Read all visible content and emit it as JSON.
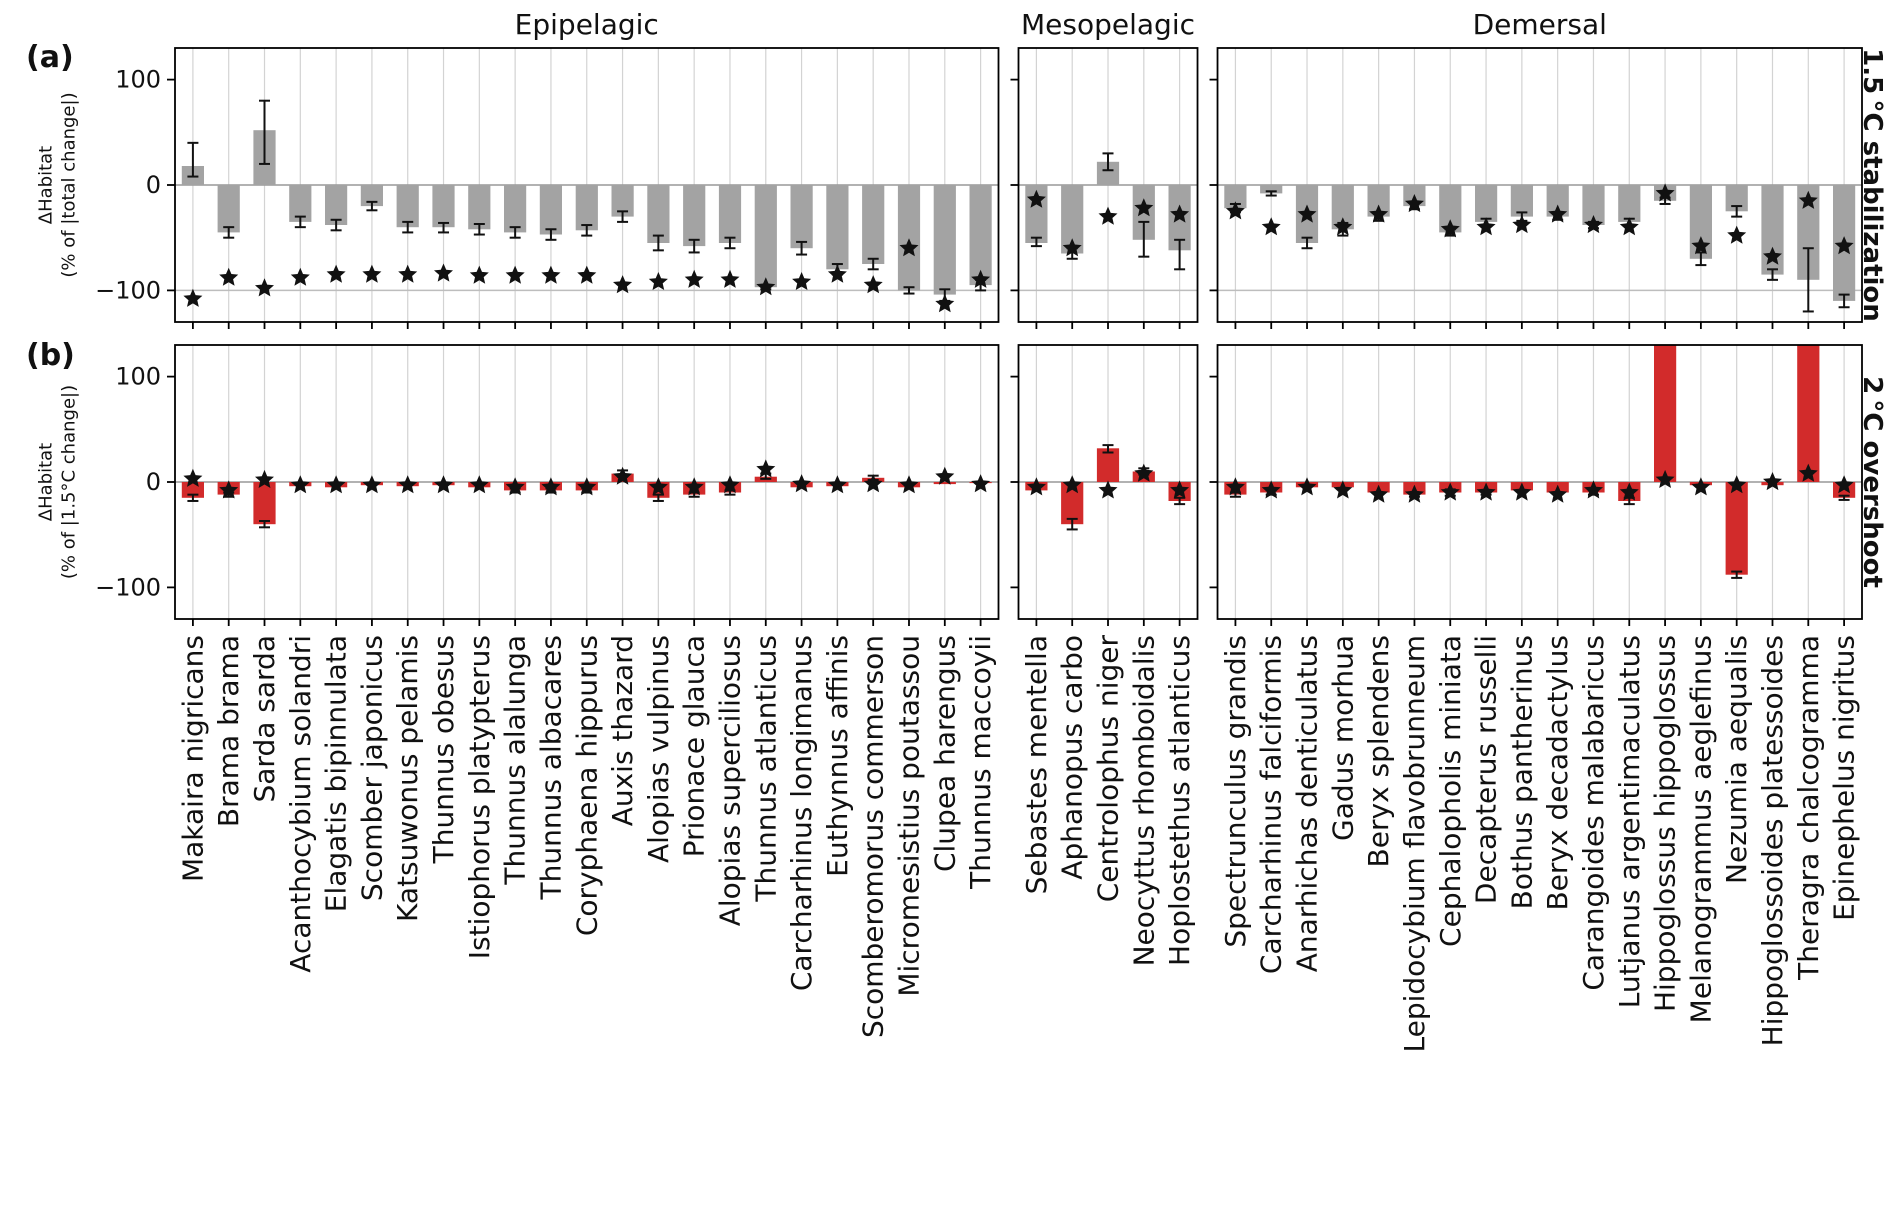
{
  "chart_data": {
    "type": "bar",
    "ylim": [
      -130,
      130
    ],
    "yticks": [
      100,
      0,
      -100
    ],
    "hlines": {
      "a": [
        0,
        -100
      ],
      "b": [
        0
      ]
    },
    "colors": {
      "a_bar": "#a3a3a3",
      "b_bar": "#d22b2b",
      "marker": "#111111",
      "gridline": "#d3d3d3",
      "zero_line": "#999999",
      "ref_line": "#bdbdbd"
    },
    "panels": [
      {
        "id": "a",
        "letter": "(a)",
        "ylabel_line1": "ΔHabitat",
        "ylabel_line2": "(% of |total change|)",
        "right_label": "1.5 °C stabilization"
      },
      {
        "id": "b",
        "letter": "(b)",
        "ylabel_line1": "ΔHabitat",
        "ylabel_line2": "(% of |1.5°C change|)",
        "right_label": "2 °C overshoot"
      }
    ],
    "groups": [
      {
        "name": "Epipelagic",
        "categories": [
          "Makaira nigricans",
          "Brama brama",
          "Sarda sarda",
          "Acanthocybium solandri",
          "Elagatis bipinnulata",
          "Scomber japonicus",
          "Katsuwonus pelamis",
          "Thunnus obesus",
          "Istiophorus platypterus",
          "Thunnus alalunga",
          "Thunnus albacares",
          "Coryphaena hippurus",
          "Auxis thazard",
          "Alopias vulpinus",
          "Prionace glauca",
          "Alopias superciliosus",
          "Thunnus atlanticus",
          "Carcharhinus longimanus",
          "Euthynnus affinis",
          "Scomberomorus commerson",
          "Micromesistius poutassou",
          "Clupea harengus",
          "Thunnus maccoyii"
        ],
        "a": {
          "bars": [
            18,
            -45,
            52,
            -35,
            -38,
            -20,
            -40,
            -40,
            -42,
            -45,
            -47,
            -43,
            -30,
            -55,
            -58,
            -55,
            -97,
            -60,
            -80,
            -75,
            -100,
            -104,
            -95
          ],
          "err": [
            [
              8,
              40
            ],
            [
              -50,
              -40
            ],
            [
              20,
              80
            ],
            [
              -40,
              -30
            ],
            [
              -43,
              -33
            ],
            [
              -24,
              -16
            ],
            [
              -45,
              -35
            ],
            [
              -45,
              -36
            ],
            [
              -47,
              -37
            ],
            [
              -50,
              -40
            ],
            [
              -52,
              -42
            ],
            [
              -48,
              -38
            ],
            [
              -35,
              -25
            ],
            [
              -62,
              -48
            ],
            [
              -64,
              -52
            ],
            [
              -60,
              -50
            ],
            [
              -99,
              -95
            ],
            [
              -66,
              -54
            ],
            [
              -85,
              -75
            ],
            [
              -80,
              -70
            ],
            [
              -103,
              -97
            ],
            [
              -110,
              -99
            ],
            [
              -100,
              -90
            ]
          ],
          "stars": [
            -108,
            -88,
            -98,
            -88,
            -85,
            -85,
            -85,
            -84,
            -86,
            -86,
            -86,
            -86,
            -95,
            -92,
            -90,
            -90,
            -97,
            -92,
            -85,
            -95,
            -60,
            -113,
            -90
          ]
        },
        "b": {
          "bars": [
            -15,
            -12,
            -40,
            -4,
            -5,
            -3,
            -4,
            -3,
            -5,
            -8,
            -8,
            -8,
            8,
            -15,
            -12,
            -10,
            5,
            -5,
            -4,
            4,
            -5,
            -2,
            -1
          ],
          "err": [
            [
              -18,
              -12
            ],
            [
              -14,
              -10
            ],
            [
              -43,
              -37
            ],
            null,
            null,
            null,
            null,
            null,
            null,
            [
              -10,
              -6
            ],
            [
              -10,
              -6
            ],
            [
              -10,
              -6
            ],
            [
              5,
              11
            ],
            [
              -18,
              -12
            ],
            [
              -14,
              -10
            ],
            [
              -12,
              -8
            ],
            [
              3,
              8
            ],
            null,
            null,
            [
              2,
              6
            ],
            null,
            null,
            null
          ],
          "stars": [
            3,
            -8,
            2,
            -3,
            -3,
            -3,
            -3,
            -3,
            -3,
            -5,
            -5,
            -5,
            5,
            -5,
            -5,
            -3,
            12,
            -2,
            -3,
            -2,
            -3,
            5,
            -2
          ]
        }
      },
      {
        "name": "Mesopelagic",
        "categories": [
          "Sebastes mentella",
          "Aphanopus carbo",
          "Centrolophus niger",
          "Neocyttus rhomboidalis",
          "Hoplostethus atlanticus"
        ],
        "a": {
          "bars": [
            -55,
            -65,
            22,
            -52,
            -62
          ],
          "err": [
            [
              -58,
              -50
            ],
            [
              -70,
              -60
            ],
            [
              14,
              30
            ],
            [
              -68,
              -35
            ],
            [
              -80,
              -52
            ]
          ],
          "stars": [
            -14,
            -60,
            -30,
            -22,
            -28
          ]
        },
        "b": {
          "bars": [
            -8,
            -40,
            32,
            10,
            -18
          ],
          "err": [
            null,
            [
              -45,
              -35
            ],
            [
              28,
              35
            ],
            [
              7,
              13
            ],
            [
              -21,
              -15
            ]
          ],
          "stars": [
            -5,
            -3,
            -8,
            8,
            -8
          ]
        }
      },
      {
        "name": "Demersal",
        "categories": [
          "Spectrunculus grandis",
          "Carcharhinus falciformis",
          "Anarhichas denticulatus",
          "Gadus morhua",
          "Beryx splendens",
          "Lepidocybium flavobrunneum",
          "Cephalopholis miniata",
          "Decapterus russelli",
          "Bothus pantherinus",
          "Beryx decadactylus",
          "Carangoides malabaricus",
          "Lutjanus argentimaculatus",
          "Hippoglossus hippoglossus",
          "Melanogrammus aeglefinus",
          "Nezumia aequalis",
          "Hippoglossoides platessoides",
          "Theragra chalcogramma",
          "Epinephelus nigritus"
        ],
        "a": {
          "bars": [
            -22,
            -8,
            -55,
            -42,
            -30,
            -20,
            -45,
            -35,
            -30,
            -30,
            -38,
            -35,
            -15,
            -70,
            -25,
            -85,
            -90,
            -110
          ],
          "err": [
            [
              -26,
              -18
            ],
            [
              -10,
              -6
            ],
            [
              -60,
              -50
            ],
            [
              -48,
              -36
            ],
            [
              -34,
              -26
            ],
            [
              -23,
              -17
            ],
            [
              -48,
              -42
            ],
            [
              -38,
              -32
            ],
            [
              -34,
              -26
            ],
            [
              -33,
              -27
            ],
            [
              -41,
              -35
            ],
            [
              -38,
              -32
            ],
            [
              -18,
              -12
            ],
            [
              -76,
              -64
            ],
            [
              -30,
              -20
            ],
            [
              -90,
              -80
            ],
            [
              -120,
              -60
            ],
            [
              -116,
              -104
            ]
          ],
          "stars": [
            -25,
            -40,
            -28,
            -40,
            -28,
            -18,
            -42,
            -40,
            -38,
            -28,
            -38,
            -40,
            -8,
            -58,
            -48,
            -68,
            -15,
            -58
          ]
        },
        "b": {
          "bars": [
            -12,
            -10,
            -5,
            -5,
            -10,
            -12,
            -10,
            -10,
            -8,
            -10,
            -10,
            -18,
            140,
            -3,
            -88,
            -3,
            140,
            -15
          ],
          "err": [
            [
              -14,
              -10
            ],
            [
              -12,
              -8
            ],
            null,
            null,
            null,
            [
              -14,
              -10
            ],
            [
              -13,
              -7
            ],
            [
              -12,
              -8
            ],
            null,
            null,
            [
              -12,
              -8
            ],
            [
              -21,
              -15
            ],
            null,
            null,
            [
              -91,
              -85
            ],
            null,
            null,
            [
              -17,
              -13
            ]
          ],
          "stars": [
            -5,
            -8,
            -5,
            -8,
            -12,
            -12,
            -10,
            -10,
            -10,
            -12,
            -8,
            -10,
            2,
            -5,
            -3,
            0,
            8,
            -3
          ]
        }
      }
    ]
  }
}
